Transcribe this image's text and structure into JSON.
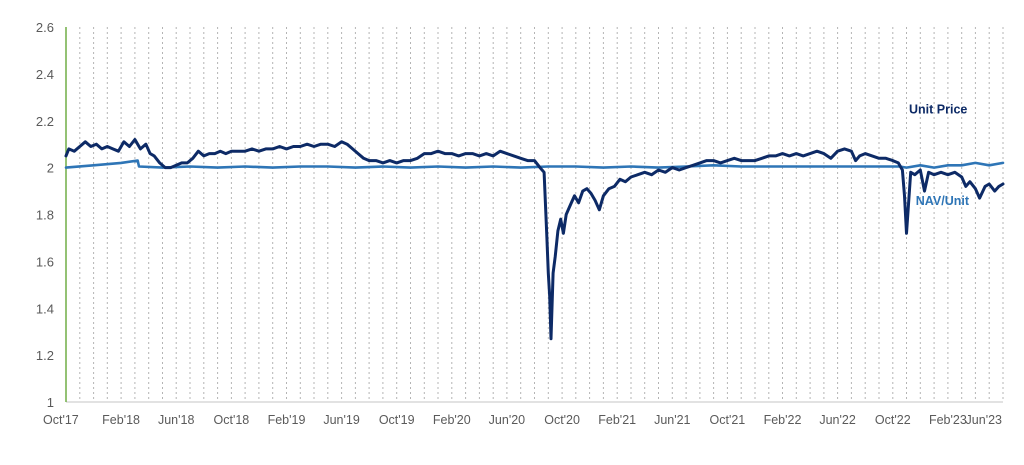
{
  "chart_data": {
    "type": "line",
    "title": "",
    "xlabel": "",
    "ylabel": "",
    "ylim": [
      1,
      2.6
    ],
    "yticks": [
      1,
      1.2,
      1.4,
      1.6,
      1.8,
      2,
      2.2,
      2.4,
      2.6
    ],
    "ytick_labels": [
      "1",
      "1.2",
      "1.4",
      "1.6",
      "1.8",
      "2",
      "2.2",
      "2.4",
      "2.6"
    ],
    "xtick_labels": [
      "Oct'17",
      "Feb'18",
      "Jun'18",
      "Oct'18",
      "Feb'19",
      "Jun'19",
      "Oct'19",
      "Feb'20",
      "Jun'20",
      "Oct'20",
      "Feb'21",
      "Jun'21",
      "Oct'21",
      "Feb'22",
      "Jun'22",
      "Oct'22",
      "Feb'23",
      "Jun'23"
    ],
    "grid": {
      "x": "monthly dotted vertical lines",
      "y": false
    },
    "legend": "inline annotations",
    "annotations": [
      {
        "text": "Unit Price",
        "series": "Unit Price",
        "month_index": 63.3,
        "value": 2.23,
        "color": "#0d2a66"
      },
      {
        "text": "NAV/Unit",
        "series": "NAV/Unit",
        "month_index": 63.6,
        "value": 1.84,
        "color": "#2e75b6"
      }
    ],
    "x_unit": "months since Oct'17",
    "x_range": [
      0,
      68
    ],
    "series": [
      {
        "name": "Unit Price",
        "color": "#0d2a66",
        "points": [
          [
            0,
            2.05
          ],
          [
            0.2,
            2.08
          ],
          [
            0.6,
            2.07
          ],
          [
            1.0,
            2.09
          ],
          [
            1.4,
            2.11
          ],
          [
            1.8,
            2.09
          ],
          [
            2.2,
            2.1
          ],
          [
            2.6,
            2.08
          ],
          [
            3.0,
            2.09
          ],
          [
            3.4,
            2.08
          ],
          [
            3.8,
            2.07
          ],
          [
            4.2,
            2.11
          ],
          [
            4.6,
            2.09
          ],
          [
            5.0,
            2.12
          ],
          [
            5.4,
            2.08
          ],
          [
            5.8,
            2.1
          ],
          [
            6.1,
            2.06
          ],
          [
            6.4,
            2.05
          ],
          [
            6.8,
            2.02
          ],
          [
            7.2,
            2.0
          ],
          [
            7.6,
            2.0
          ],
          [
            8.0,
            2.01
          ],
          [
            8.4,
            2.02
          ],
          [
            8.8,
            2.02
          ],
          [
            9.2,
            2.04
          ],
          [
            9.6,
            2.07
          ],
          [
            10.0,
            2.05
          ],
          [
            10.4,
            2.06
          ],
          [
            10.8,
            2.06
          ],
          [
            11.2,
            2.07
          ],
          [
            11.6,
            2.06
          ],
          [
            12.0,
            2.07
          ],
          [
            12.5,
            2.07
          ],
          [
            13.0,
            2.07
          ],
          [
            13.5,
            2.08
          ],
          [
            14.0,
            2.07
          ],
          [
            14.5,
            2.08
          ],
          [
            15.0,
            2.08
          ],
          [
            15.5,
            2.09
          ],
          [
            16.0,
            2.08
          ],
          [
            16.5,
            2.09
          ],
          [
            17.0,
            2.09
          ],
          [
            17.5,
            2.1
          ],
          [
            18.0,
            2.09
          ],
          [
            18.5,
            2.1
          ],
          [
            19.0,
            2.1
          ],
          [
            19.5,
            2.09
          ],
          [
            20.0,
            2.11
          ],
          [
            20.4,
            2.1
          ],
          [
            20.8,
            2.08
          ],
          [
            21.2,
            2.06
          ],
          [
            21.6,
            2.04
          ],
          [
            22.0,
            2.03
          ],
          [
            22.5,
            2.03
          ],
          [
            23.0,
            2.02
          ],
          [
            23.5,
            2.03
          ],
          [
            24.0,
            2.02
          ],
          [
            24.5,
            2.03
          ],
          [
            25.0,
            2.03
          ],
          [
            25.5,
            2.04
          ],
          [
            26.0,
            2.06
          ],
          [
            26.5,
            2.06
          ],
          [
            27.0,
            2.07
          ],
          [
            27.5,
            2.06
          ],
          [
            28.0,
            2.06
          ],
          [
            28.5,
            2.05
          ],
          [
            29.0,
            2.06
          ],
          [
            29.5,
            2.06
          ],
          [
            30.0,
            2.05
          ],
          [
            30.5,
            2.06
          ],
          [
            31.0,
            2.05
          ],
          [
            31.5,
            2.07
          ],
          [
            32.0,
            2.06
          ],
          [
            32.5,
            2.05
          ],
          [
            33.0,
            2.04
          ],
          [
            33.5,
            2.03
          ],
          [
            34.0,
            2.03
          ],
          [
            34.4,
            2.0
          ],
          [
            34.7,
            1.98
          ],
          [
            34.9,
            1.7
          ],
          [
            35.0,
            1.55
          ],
          [
            35.1,
            1.45
          ],
          [
            35.2,
            1.27
          ],
          [
            35.35,
            1.55
          ],
          [
            35.5,
            1.62
          ],
          [
            35.7,
            1.73
          ],
          [
            35.9,
            1.78
          ],
          [
            36.1,
            1.72
          ],
          [
            36.3,
            1.8
          ],
          [
            36.6,
            1.84
          ],
          [
            36.9,
            1.88
          ],
          [
            37.2,
            1.85
          ],
          [
            37.5,
            1.9
          ],
          [
            37.8,
            1.91
          ],
          [
            38.1,
            1.89
          ],
          [
            38.4,
            1.86
          ],
          [
            38.7,
            1.82
          ],
          [
            39.0,
            1.88
          ],
          [
            39.4,
            1.91
          ],
          [
            39.8,
            1.92
          ],
          [
            40.2,
            1.95
          ],
          [
            40.6,
            1.94
          ],
          [
            41.0,
            1.96
          ],
          [
            41.5,
            1.97
          ],
          [
            42.0,
            1.98
          ],
          [
            42.5,
            1.97
          ],
          [
            43.0,
            1.99
          ],
          [
            43.5,
            1.98
          ],
          [
            44.0,
            2.0
          ],
          [
            44.5,
            1.99
          ],
          [
            45.0,
            2.0
          ],
          [
            45.5,
            2.01
          ],
          [
            46.0,
            2.02
          ],
          [
            46.5,
            2.03
          ],
          [
            47.0,
            2.03
          ],
          [
            47.5,
            2.02
          ],
          [
            48.0,
            2.03
          ],
          [
            48.5,
            2.04
          ],
          [
            49.0,
            2.03
          ],
          [
            49.5,
            2.03
          ],
          [
            50.0,
            2.03
          ],
          [
            50.5,
            2.04
          ],
          [
            51.0,
            2.05
          ],
          [
            51.5,
            2.05
          ],
          [
            52.0,
            2.06
          ],
          [
            52.5,
            2.05
          ],
          [
            53.0,
            2.06
          ],
          [
            53.5,
            2.05
          ],
          [
            54.0,
            2.06
          ],
          [
            54.5,
            2.07
          ],
          [
            55.0,
            2.06
          ],
          [
            55.5,
            2.04
          ],
          [
            56.0,
            2.07
          ],
          [
            56.5,
            2.08
          ],
          [
            57.0,
            2.07
          ],
          [
            57.3,
            2.03
          ],
          [
            57.6,
            2.05
          ],
          [
            58.0,
            2.06
          ],
          [
            58.5,
            2.05
          ],
          [
            59.0,
            2.04
          ],
          [
            59.5,
            2.04
          ],
          [
            60.0,
            2.03
          ],
          [
            60.4,
            2.02
          ],
          [
            60.7,
            1.99
          ],
          [
            60.85,
            1.88
          ],
          [
            61.0,
            1.72
          ],
          [
            61.15,
            1.85
          ],
          [
            61.3,
            1.98
          ],
          [
            61.6,
            1.97
          ],
          [
            62.0,
            1.99
          ],
          [
            62.3,
            1.9
          ],
          [
            62.6,
            1.98
          ],
          [
            63.0,
            1.97
          ],
          [
            63.5,
            1.98
          ],
          [
            64.0,
            1.97
          ],
          [
            64.5,
            1.98
          ],
          [
            65.0,
            1.96
          ],
          [
            65.3,
            1.92
          ],
          [
            65.6,
            1.94
          ],
          [
            66.0,
            1.91
          ],
          [
            66.3,
            1.87
          ],
          [
            66.7,
            1.92
          ],
          [
            67.0,
            1.93
          ],
          [
            67.4,
            1.9
          ],
          [
            67.7,
            1.92
          ],
          [
            68.0,
            1.93
          ]
        ]
      },
      {
        "name": "NAV/Unit",
        "color": "#2e75b6",
        "points": [
          [
            0,
            2.0
          ],
          [
            2,
            2.01
          ],
          [
            4,
            2.02
          ],
          [
            5.2,
            2.03
          ],
          [
            5.3,
            2.005
          ],
          [
            7,
            2.0
          ],
          [
            9,
            2.005
          ],
          [
            11,
            2.0
          ],
          [
            13,
            2.005
          ],
          [
            15,
            2.0
          ],
          [
            17,
            2.005
          ],
          [
            19,
            2.005
          ],
          [
            21,
            2.0
          ],
          [
            23,
            2.005
          ],
          [
            25,
            2.0
          ],
          [
            27,
            2.005
          ],
          [
            29,
            2.0
          ],
          [
            31,
            2.005
          ],
          [
            33,
            2.0
          ],
          [
            35,
            2.005
          ],
          [
            37,
            2.005
          ],
          [
            39,
            2.0
          ],
          [
            41,
            2.005
          ],
          [
            43,
            2.0
          ],
          [
            45,
            2.005
          ],
          [
            47,
            2.01
          ],
          [
            49,
            2.005
          ],
          [
            51,
            2.005
          ],
          [
            53,
            2.005
          ],
          [
            55,
            2.005
          ],
          [
            57,
            2.005
          ],
          [
            59,
            2.005
          ],
          [
            60.5,
            2.005
          ],
          [
            61,
            2.0
          ],
          [
            62,
            2.01
          ],
          [
            63,
            2.0
          ],
          [
            64,
            2.01
          ],
          [
            65,
            2.01
          ],
          [
            66,
            2.02
          ],
          [
            67,
            2.01
          ],
          [
            68,
            2.02
          ]
        ]
      }
    ]
  }
}
